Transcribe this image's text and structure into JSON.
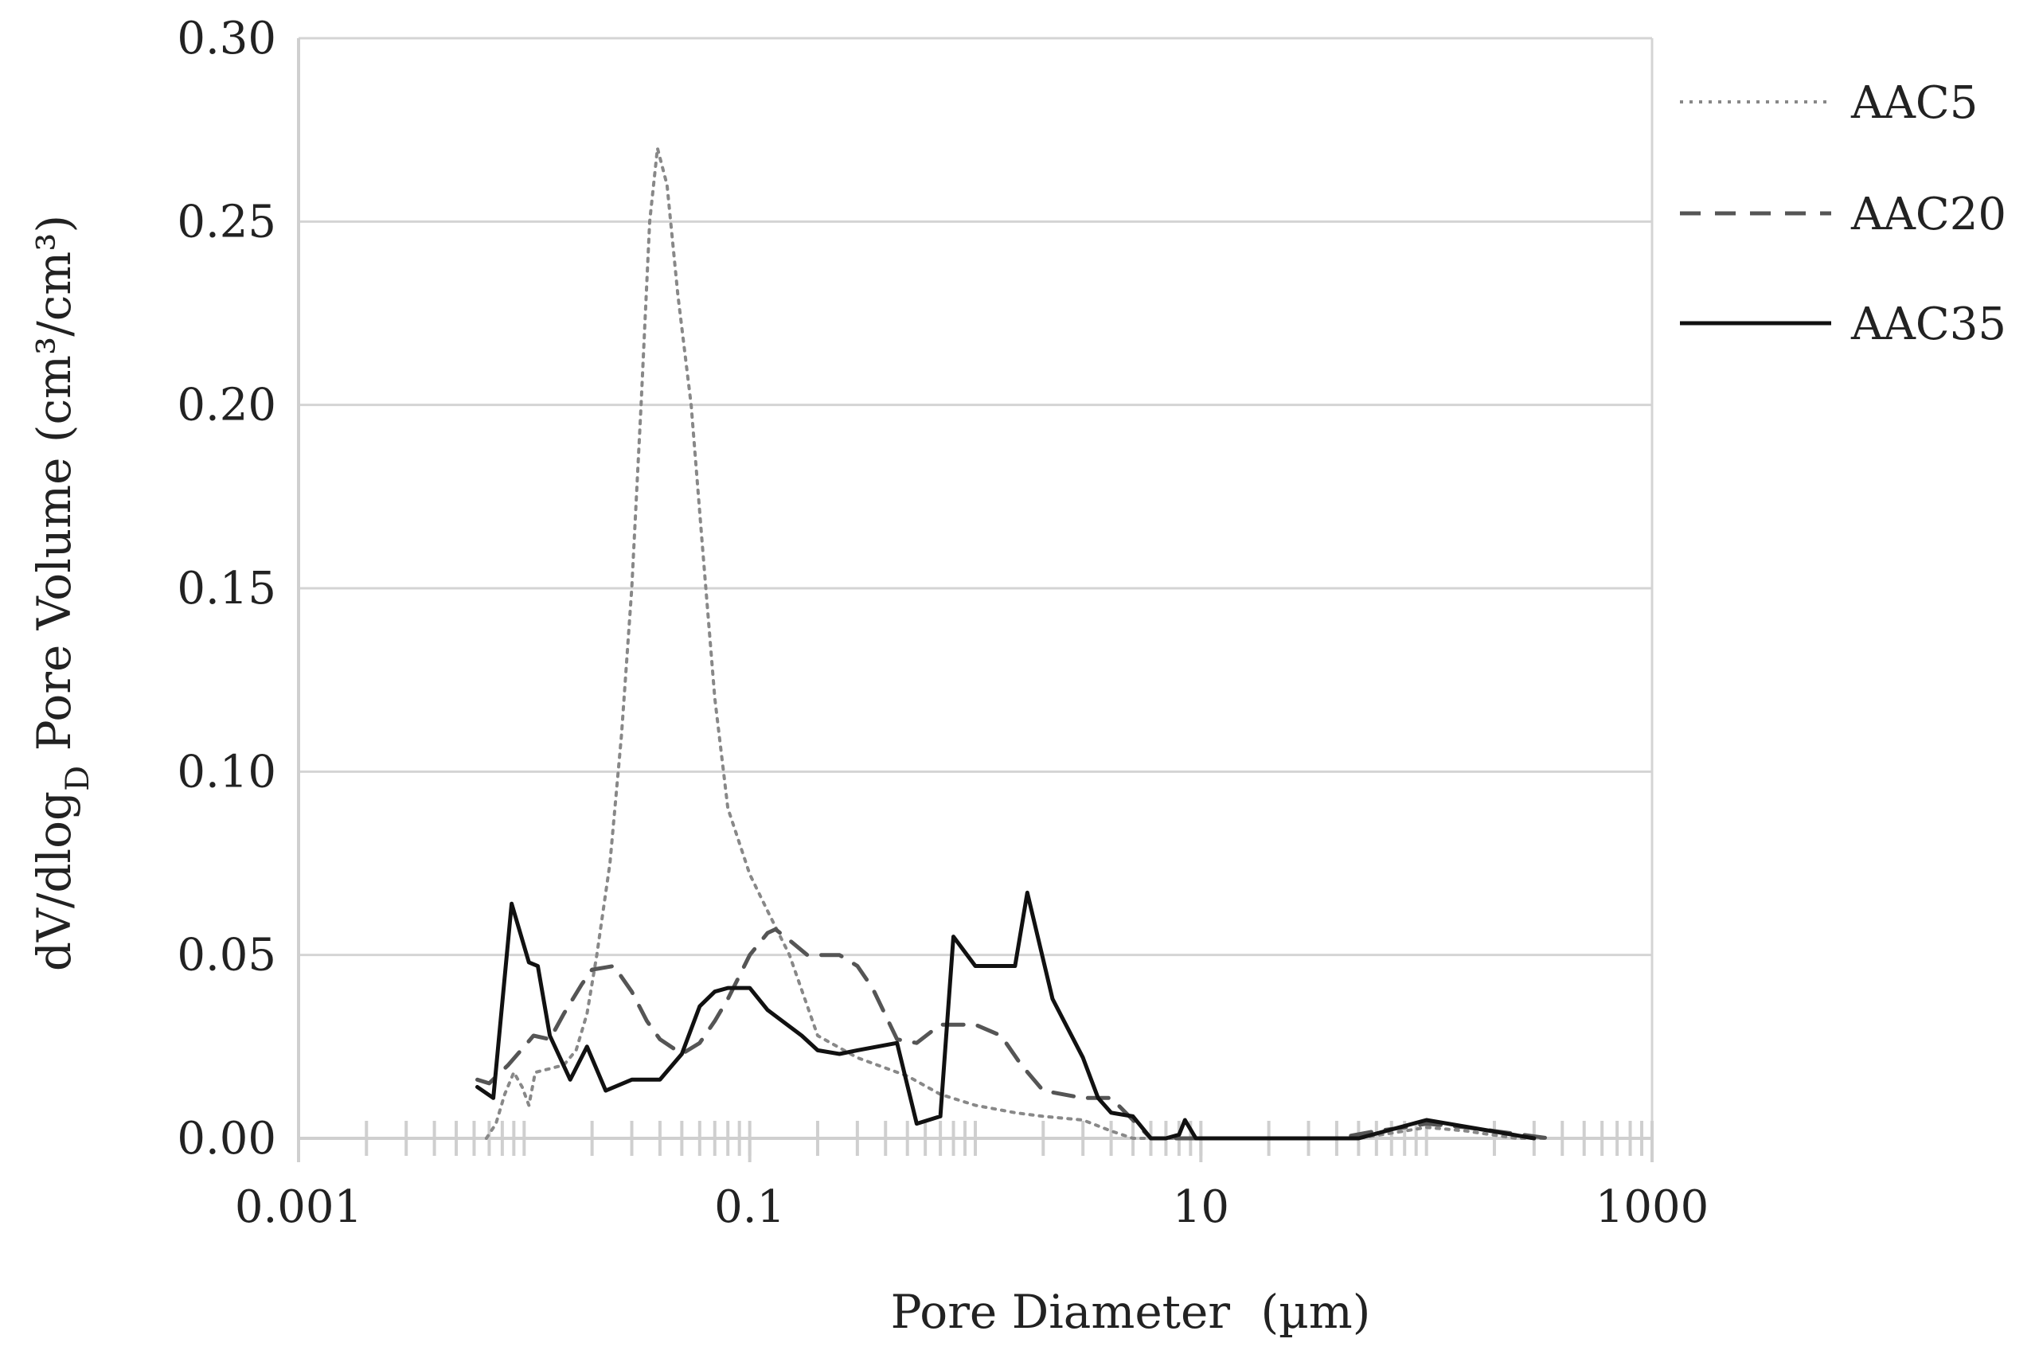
{
  "chart_data": {
    "type": "line",
    "title": "",
    "xlabel": "Pore Diameter",
    "xunit": "(µm)",
    "ylabel": {
      "main": "dV/dlog",
      "sub": "D",
      "middle": " Pore Volume ",
      "unit": "(cm³/cm³)"
    },
    "xscale": "log",
    "xlim": [
      0.001,
      1000
    ],
    "ylim": [
      0,
      0.3
    ],
    "xticks": [
      0.001,
      0.1,
      10,
      1000
    ],
    "xtick_labels": [
      "0.001",
      "0.1",
      "10",
      "1000"
    ],
    "yticks": [
      0,
      0.05,
      0.1,
      0.15,
      0.2,
      0.25,
      0.3
    ],
    "ytick_labels": [
      "0.00",
      "0.05",
      "0.10",
      "0.15",
      "0.20",
      "0.25",
      "0.30"
    ],
    "grid": "horizontal",
    "legend": "right",
    "series": [
      {
        "name": "AAC5",
        "style": "dotted",
        "color": "#888888",
        "points": [
          [
            0.0068,
            0.0
          ],
          [
            0.0075,
            0.004
          ],
          [
            0.0082,
            0.012
          ],
          [
            0.009,
            0.018
          ],
          [
            0.0098,
            0.014
          ],
          [
            0.0105,
            0.009
          ],
          [
            0.0112,
            0.018
          ],
          [
            0.013,
            0.019
          ],
          [
            0.015,
            0.02
          ],
          [
            0.017,
            0.024
          ],
          [
            0.019,
            0.034
          ],
          [
            0.021,
            0.05
          ],
          [
            0.024,
            0.075
          ],
          [
            0.027,
            0.11
          ],
          [
            0.03,
            0.15
          ],
          [
            0.033,
            0.2
          ],
          [
            0.036,
            0.25
          ],
          [
            0.039,
            0.27
          ],
          [
            0.043,
            0.26
          ],
          [
            0.048,
            0.23
          ],
          [
            0.055,
            0.2
          ],
          [
            0.062,
            0.16
          ],
          [
            0.07,
            0.12
          ],
          [
            0.08,
            0.09
          ],
          [
            0.1,
            0.072
          ],
          [
            0.12,
            0.062
          ],
          [
            0.15,
            0.05
          ],
          [
            0.2,
            0.028
          ],
          [
            0.3,
            0.022
          ],
          [
            0.5,
            0.017
          ],
          [
            0.7,
            0.012
          ],
          [
            1.0,
            0.009
          ],
          [
            1.5,
            0.007
          ],
          [
            2.0,
            0.006
          ],
          [
            3.0,
            0.005
          ],
          [
            4.0,
            0.002
          ],
          [
            5.0,
            0.0
          ],
          [
            10,
            0.0
          ],
          [
            50,
            0.0
          ],
          [
            80,
            0.002
          ],
          [
            100,
            0.003
          ],
          [
            150,
            0.002
          ],
          [
            250,
            0.0
          ],
          [
            350,
            0.0
          ]
        ]
      },
      {
        "name": "AAC20",
        "style": "dashed",
        "color": "#555555",
        "points": [
          [
            0.0062,
            0.016
          ],
          [
            0.007,
            0.015
          ],
          [
            0.0085,
            0.02
          ],
          [
            0.01,
            0.025
          ],
          [
            0.011,
            0.028
          ],
          [
            0.013,
            0.027
          ],
          [
            0.015,
            0.034
          ],
          [
            0.018,
            0.042
          ],
          [
            0.02,
            0.046
          ],
          [
            0.025,
            0.047
          ],
          [
            0.03,
            0.04
          ],
          [
            0.035,
            0.032
          ],
          [
            0.04,
            0.027
          ],
          [
            0.05,
            0.023
          ],
          [
            0.06,
            0.026
          ],
          [
            0.07,
            0.032
          ],
          [
            0.08,
            0.038
          ],
          [
            0.1,
            0.05
          ],
          [
            0.12,
            0.056
          ],
          [
            0.13,
            0.057
          ],
          [
            0.15,
            0.054
          ],
          [
            0.18,
            0.05
          ],
          [
            0.25,
            0.05
          ],
          [
            0.3,
            0.047
          ],
          [
            0.35,
            0.041
          ],
          [
            0.45,
            0.027
          ],
          [
            0.55,
            0.026
          ],
          [
            0.7,
            0.031
          ],
          [
            1.0,
            0.031
          ],
          [
            1.3,
            0.028
          ],
          [
            1.6,
            0.02
          ],
          [
            2.0,
            0.013
          ],
          [
            3.0,
            0.011
          ],
          [
            4.0,
            0.011
          ],
          [
            5.0,
            0.005
          ],
          [
            6.0,
            0.0
          ],
          [
            10,
            0.0
          ],
          [
            40,
            0.0
          ],
          [
            60,
            0.002
          ],
          [
            80,
            0.003
          ],
          [
            100,
            0.004
          ],
          [
            150,
            0.003
          ],
          [
            200,
            0.002
          ],
          [
            350,
            0.0
          ]
        ]
      },
      {
        "name": "AAC35",
        "style": "solid",
        "color": "#111111",
        "points": [
          [
            0.0062,
            0.014
          ],
          [
            0.0073,
            0.011
          ],
          [
            0.0088,
            0.064
          ],
          [
            0.0105,
            0.048
          ],
          [
            0.0115,
            0.047
          ],
          [
            0.013,
            0.028
          ],
          [
            0.016,
            0.016
          ],
          [
            0.019,
            0.025
          ],
          [
            0.023,
            0.013
          ],
          [
            0.03,
            0.016
          ],
          [
            0.04,
            0.016
          ],
          [
            0.05,
            0.023
          ],
          [
            0.06,
            0.036
          ],
          [
            0.07,
            0.04
          ],
          [
            0.08,
            0.041
          ],
          [
            0.1,
            0.041
          ],
          [
            0.12,
            0.035
          ],
          [
            0.17,
            0.028
          ],
          [
            0.2,
            0.024
          ],
          [
            0.25,
            0.023
          ],
          [
            0.3,
            0.024
          ],
          [
            0.45,
            0.026
          ],
          [
            0.55,
            0.004
          ],
          [
            0.7,
            0.006
          ],
          [
            0.8,
            0.055
          ],
          [
            1.0,
            0.047
          ],
          [
            1.3,
            0.047
          ],
          [
            1.5,
            0.047
          ],
          [
            1.7,
            0.067
          ],
          [
            2.2,
            0.038
          ],
          [
            3.0,
            0.022
          ],
          [
            3.5,
            0.011
          ],
          [
            4.0,
            0.007
          ],
          [
            5.0,
            0.006
          ],
          [
            6.0,
            0.0
          ],
          [
            7.0,
            0.0
          ],
          [
            8.0,
            0.001
          ],
          [
            8.5,
            0.005
          ],
          [
            9.5,
            0.0
          ],
          [
            20,
            0.0
          ],
          [
            50,
            0.0
          ],
          [
            100,
            0.005
          ],
          [
            300,
            0.0
          ]
        ]
      }
    ]
  }
}
